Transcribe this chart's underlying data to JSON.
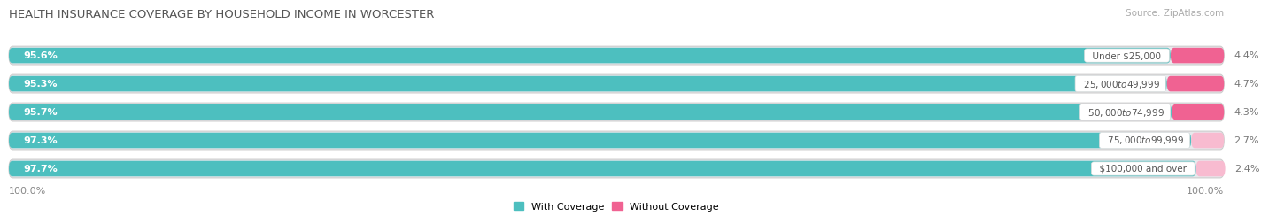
{
  "title": "HEALTH INSURANCE COVERAGE BY HOUSEHOLD INCOME IN WORCESTER",
  "source": "Source: ZipAtlas.com",
  "categories": [
    "Under $25,000",
    "$25,000 to $49,999",
    "$50,000 to $74,999",
    "$75,000 to $99,999",
    "$100,000 and over"
  ],
  "with_coverage": [
    95.6,
    95.3,
    95.7,
    97.3,
    97.7
  ],
  "without_coverage": [
    4.4,
    4.7,
    4.3,
    2.7,
    2.4
  ],
  "color_with": "#4dbfbf",
  "color_without": "#f06292",
  "color_without_light": "#f8bbd0",
  "color_track": "#e8e8ec",
  "title_color": "#555555",
  "label_color_left": "#ffffff",
  "label_color_right": "#888888",
  "cat_label_color": "#555555",
  "title_fontsize": 9.5,
  "label_fontsize": 8,
  "legend_fontsize": 8,
  "source_fontsize": 7.5,
  "fig_width": 14.06,
  "fig_height": 2.69,
  "bottom_label": "100.0%"
}
